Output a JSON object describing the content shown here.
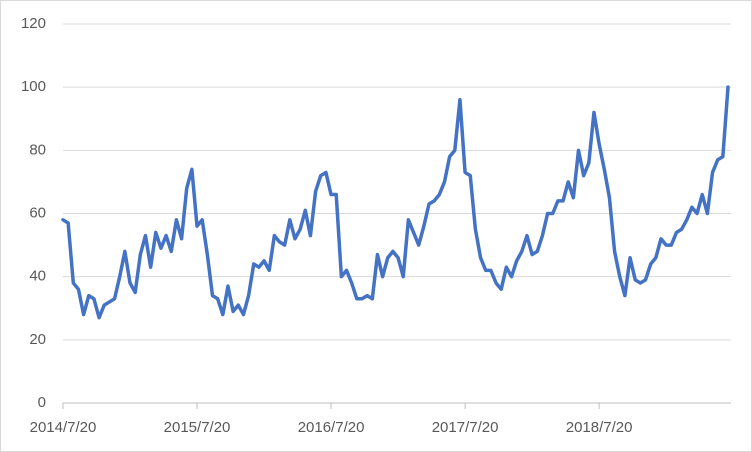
{
  "chart_data": {
    "type": "line",
    "categories": [
      "2014/7/20",
      null,
      null,
      null,
      null,
      null,
      null,
      null,
      null,
      null,
      null,
      null,
      null,
      null,
      null,
      null,
      null,
      null,
      null,
      null,
      null,
      null,
      null,
      null,
      null,
      null,
      "2015/7/20",
      null,
      null,
      null,
      null,
      null,
      null,
      null,
      null,
      null,
      null,
      null,
      null,
      null,
      null,
      null,
      null,
      null,
      null,
      null,
      null,
      null,
      null,
      null,
      null,
      null,
      "2016/7/20",
      null,
      null,
      null,
      null,
      null,
      null,
      null,
      null,
      null,
      null,
      null,
      null,
      null,
      null,
      null,
      null,
      null,
      null,
      null,
      null,
      null,
      null,
      null,
      null,
      null,
      "2017/7/20",
      null,
      null,
      null,
      null,
      null,
      null,
      null,
      null,
      null,
      null,
      null,
      null,
      null,
      null,
      null,
      null,
      null,
      null,
      null,
      null,
      null,
      null,
      null,
      null,
      null,
      "2018/7/20",
      null,
      null,
      null,
      null,
      null,
      null,
      null,
      null,
      null,
      null,
      null,
      null,
      null,
      null,
      null,
      null,
      null,
      null,
      null,
      null,
      null,
      null,
      null,
      null,
      null
    ],
    "series": [
      {
        "color": "#4472c4",
        "values": [
          58,
          57,
          38,
          36,
          28,
          34,
          33,
          27,
          31,
          32,
          33,
          40,
          48,
          38,
          35,
          47,
          53,
          43,
          54,
          49,
          53,
          48,
          58,
          52,
          68,
          74,
          56,
          58,
          47,
          34,
          33,
          28,
          37,
          29,
          31,
          28,
          34,
          44,
          43,
          45,
          42,
          53,
          51,
          50,
          58,
          52,
          55,
          61,
          53,
          67,
          72,
          73,
          66,
          66,
          40,
          42,
          38,
          33,
          33,
          34,
          33,
          47,
          40,
          46,
          48,
          46,
          40,
          58,
          54,
          50,
          56,
          63,
          64,
          66,
          70,
          78,
          80,
          96,
          73,
          72,
          55,
          46,
          42,
          42,
          38,
          36,
          43,
          40,
          45,
          48,
          53,
          47,
          48,
          53,
          60,
          60,
          64,
          64,
          70,
          65,
          80,
          72,
          76,
          92,
          82,
          74,
          65,
          48,
          40,
          34,
          46,
          39,
          38,
          39,
          44,
          46,
          52,
          50,
          50,
          54,
          55,
          58,
          62,
          60,
          66,
          60,
          73,
          77,
          78,
          100
        ]
      }
    ],
    "ylim": [
      0,
      120
    ],
    "yticks": [
      0,
      20,
      40,
      60,
      80,
      100,
      120
    ],
    "grid": true
  }
}
